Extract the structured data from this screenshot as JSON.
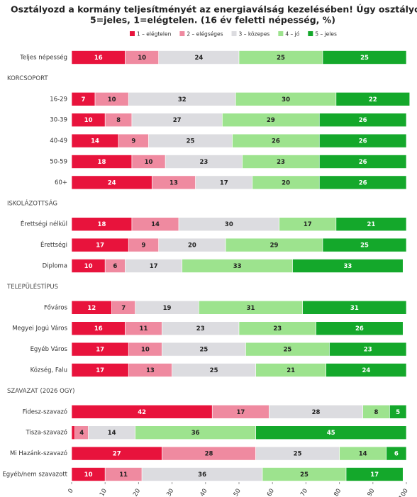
{
  "chart_data": {
    "type": "stacked-bar-horizontal",
    "title": "Osztályozd a kormány teljesítményét az energiaválság kezelésében! Úgy osztályozz, mint az iskolában,",
    "subtitle": "5=jeles, 1=elégtelen. (16 év feletti népesség, %)",
    "categories": [
      "Teljes népesség",
      "KORCSOPORT",
      "16-29",
      "30-39",
      "40-49",
      "50-59",
      "60+",
      "ISKOLÁZOTTSÁG",
      "Érettségi nélkül",
      "Érettségi",
      "Diploma",
      "TELEPÜLÉSTÍPUS",
      "Főváros",
      "Megyei Jogú Város",
      "Egyéb Város",
      "Község, Falu",
      "SZAVAZAT (2026 OGY)",
      "Fidesz-szavazó",
      "Tisza-szavazó",
      "Mi Hazánk-szavazó",
      "Egyéb/nem szavazott"
    ],
    "series": [
      {
        "name": "1 – elégtelen",
        "color": "#e8133c",
        "values": [
          16,
          null,
          7,
          10,
          14,
          18,
          24,
          null,
          18,
          17,
          10,
          null,
          12,
          16,
          17,
          17,
          null,
          42,
          1,
          27,
          10
        ]
      },
      {
        "name": "2 – elégséges",
        "color": "#ef8aa0",
        "values": [
          10,
          null,
          10,
          8,
          9,
          10,
          13,
          null,
          14,
          9,
          6,
          null,
          7,
          11,
          10,
          13,
          null,
          17,
          4,
          28,
          11
        ]
      },
      {
        "name": "3 – közepes",
        "color": "#dcdce0",
        "values": [
          24,
          null,
          32,
          27,
          25,
          23,
          17,
          null,
          30,
          20,
          17,
          null,
          19,
          23,
          25,
          25,
          null,
          28,
          14,
          25,
          36
        ]
      },
      {
        "name": "4 – jó",
        "color": "#9de38e",
        "values": [
          25,
          null,
          30,
          29,
          26,
          23,
          20,
          null,
          17,
          29,
          33,
          null,
          31,
          23,
          25,
          21,
          null,
          8,
          36,
          14,
          25
        ]
      },
      {
        "name": "5 – jeles",
        "color": "#14a82b",
        "values": [
          25,
          null,
          22,
          26,
          26,
          26,
          26,
          null,
          21,
          25,
          33,
          null,
          31,
          26,
          23,
          24,
          null,
          5,
          45,
          6,
          17
        ]
      }
    ],
    "xlim": [
      0,
      100
    ],
    "xticks": [
      0,
      10,
      20,
      30,
      40,
      50,
      60,
      70,
      80,
      90,
      100
    ]
  }
}
